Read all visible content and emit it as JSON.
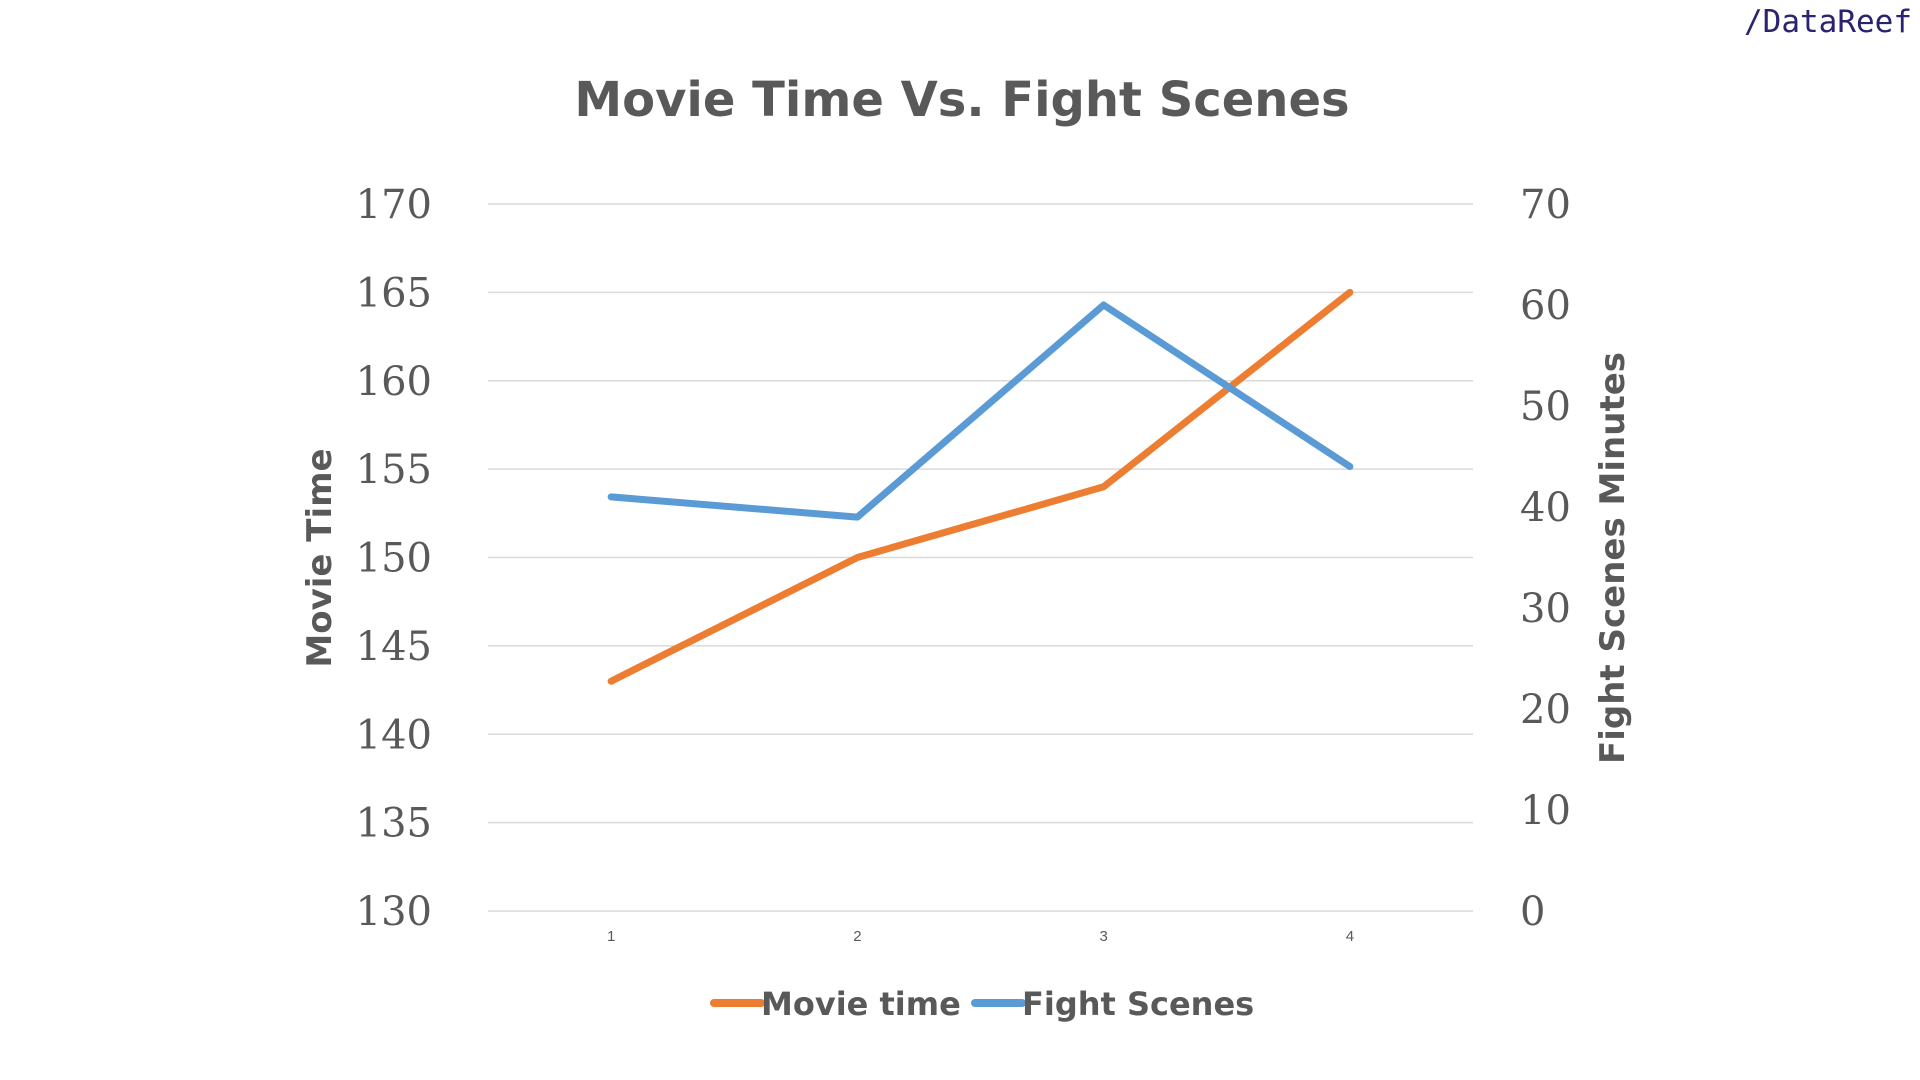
{
  "brand": "/DataReef",
  "chart_data": {
    "type": "line",
    "title": "Movie Time Vs. Fight Scenes",
    "x": [
      1,
      2,
      3,
      4
    ],
    "x_tick_labels": [
      "1",
      "2",
      "3",
      "4"
    ],
    "y_left": {
      "label": "Movie Time",
      "lim": [
        130,
        170
      ],
      "ticks": [
        130,
        135,
        140,
        145,
        150,
        155,
        160,
        165,
        170
      ]
    },
    "y_right": {
      "label": "Fight Scenes Minutes",
      "lim": [
        0,
        70
      ],
      "ticks": [
        0,
        10,
        20,
        30,
        40,
        50,
        60,
        70
      ]
    },
    "series": [
      {
        "name": "Movie time",
        "axis": "left",
        "color": "#ed7d31",
        "values": [
          143,
          150,
          154,
          165
        ]
      },
      {
        "name": "Fight Scenes",
        "axis": "right",
        "color": "#5b9bd5",
        "values": [
          41,
          39,
          60,
          44
        ]
      }
    ],
    "grid": true,
    "legend_position": "bottom"
  }
}
